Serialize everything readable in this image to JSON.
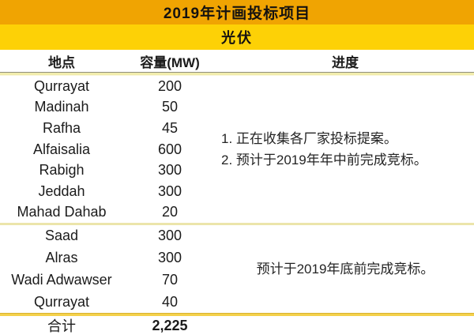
{
  "table": {
    "title": "2019年计画投标项目",
    "subtitle": "光伏",
    "columns": {
      "location": "地点",
      "capacity": "容量(MW)",
      "progress": "进度"
    },
    "groups": [
      {
        "rows": [
          {
            "location": "Qurrayat",
            "capacity": "200"
          },
          {
            "location": "Madinah",
            "capacity": "50"
          },
          {
            "location": "Rafha",
            "capacity": "45"
          },
          {
            "location": "Alfaisalia",
            "capacity": "600"
          },
          {
            "location": "Rabigh",
            "capacity": "300"
          },
          {
            "location": "Jeddah",
            "capacity": "300"
          },
          {
            "location": "Mahad Dahab",
            "capacity": "20"
          }
        ],
        "progress_lines": [
          "1. 正在收集各厂家投标提案。",
          "2. 预计于2019年年中前完成竞标。"
        ]
      },
      {
        "rows": [
          {
            "location": "Saad",
            "capacity": "300"
          },
          {
            "location": "Alras",
            "capacity": "300"
          },
          {
            "location": "Wadi Adwawser",
            "capacity": "70"
          },
          {
            "location": "Qurrayat",
            "capacity": "40"
          }
        ],
        "progress_lines": [
          "预计于2019年底前完成竞标。"
        ]
      }
    ],
    "total": {
      "label": "合计",
      "value": "2,225"
    }
  },
  "colors": {
    "band1": "#F0A402",
    "band2": "#FDD106",
    "divider_strong": "#F4D04A",
    "divider_pale": "#ECE5AB",
    "header_divider": "#F1ECAC",
    "text": "#1B1B1B"
  },
  "chart_data": {
    "type": "table",
    "title": "2019年计画投标项目",
    "subtitle": "光伏",
    "columns": [
      "地点",
      "容量(MW)",
      "进度"
    ],
    "rows": [
      [
        "Qurrayat",
        200
      ],
      [
        "Madinah",
        50
      ],
      [
        "Rafha",
        45
      ],
      [
        "Alfaisalia",
        600
      ],
      [
        "Rabigh",
        300
      ],
      [
        "Jeddah",
        300
      ],
      [
        "Mahad Dahab",
        20
      ],
      [
        "Saad",
        300
      ],
      [
        "Alras",
        300
      ],
      [
        "Wadi Adwawser",
        70
      ],
      [
        "Qurrayat",
        40
      ]
    ],
    "group_progress": [
      "1. 正在收集各厂家投标提案。 2. 预计于2019年年中前完成竞标。",
      "预计于2019年底前完成竞标。"
    ],
    "total": 2225
  }
}
